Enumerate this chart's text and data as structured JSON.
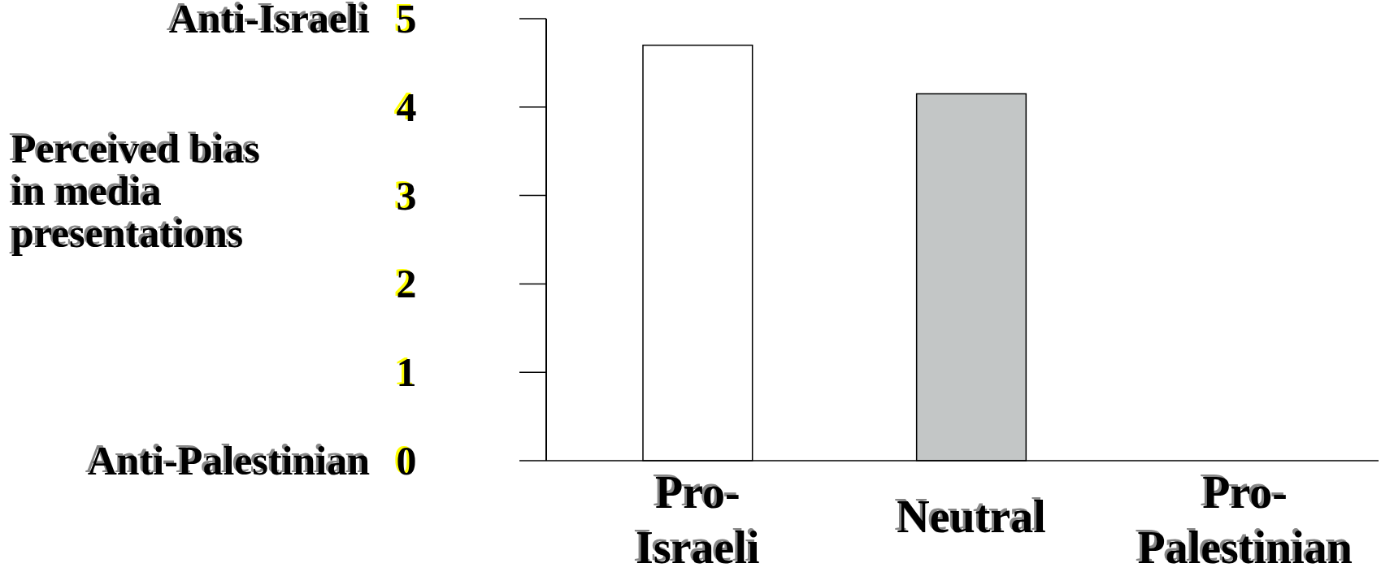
{
  "chart_data": {
    "type": "bar",
    "ylabel": "Perceived bias in media presentations",
    "categories": [
      "Pro-Israeli",
      "Neutral",
      "Pro-Palestinian"
    ],
    "values": [
      4.7,
      4.15,
      null
    ],
    "colors": [
      "#ffffff",
      "#c3c6c6",
      null
    ],
    "ylim": [
      0,
      5
    ],
    "yticks": [
      0,
      1,
      2,
      3,
      4,
      5
    ],
    "annotations": [
      "Anti-Israeli",
      "Anti-Palestinian"
    ]
  }
}
